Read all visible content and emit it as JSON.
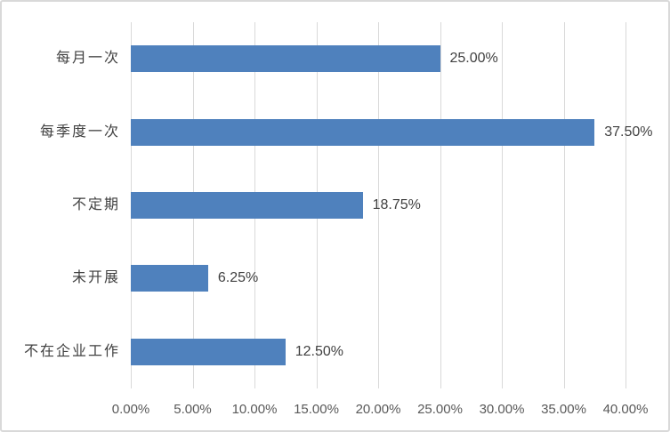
{
  "chart_data": {
    "type": "bar",
    "orientation": "horizontal",
    "title": "",
    "xlabel": "",
    "ylabel": "",
    "categories": [
      "每月一次",
      "每季度一次",
      "不定期",
      "未开展",
      "不在企业工作"
    ],
    "values": [
      25.0,
      37.5,
      18.75,
      6.25,
      12.5
    ],
    "value_labels": [
      "25.00%",
      "37.50%",
      "18.75%",
      "6.25%",
      "12.50%"
    ],
    "x_ticks": [
      "0.00%",
      "5.00%",
      "10.00%",
      "15.00%",
      "20.00%",
      "25.00%",
      "30.00%",
      "35.00%",
      "40.00%"
    ],
    "x_tick_values": [
      0,
      5,
      10,
      15,
      20,
      25,
      30,
      35,
      40
    ],
    "xlim": [
      0,
      40
    ],
    "grid": "vertical-major",
    "legend": "none",
    "bar_color": "#4F81BD",
    "gridline_color": "#D9D9D9",
    "border_color": "#D9D9D9",
    "background_color": "#FFFFFF",
    "category_label_color": "#404040",
    "data_label_color": "#404040",
    "tick_label_color": "#595959"
  }
}
